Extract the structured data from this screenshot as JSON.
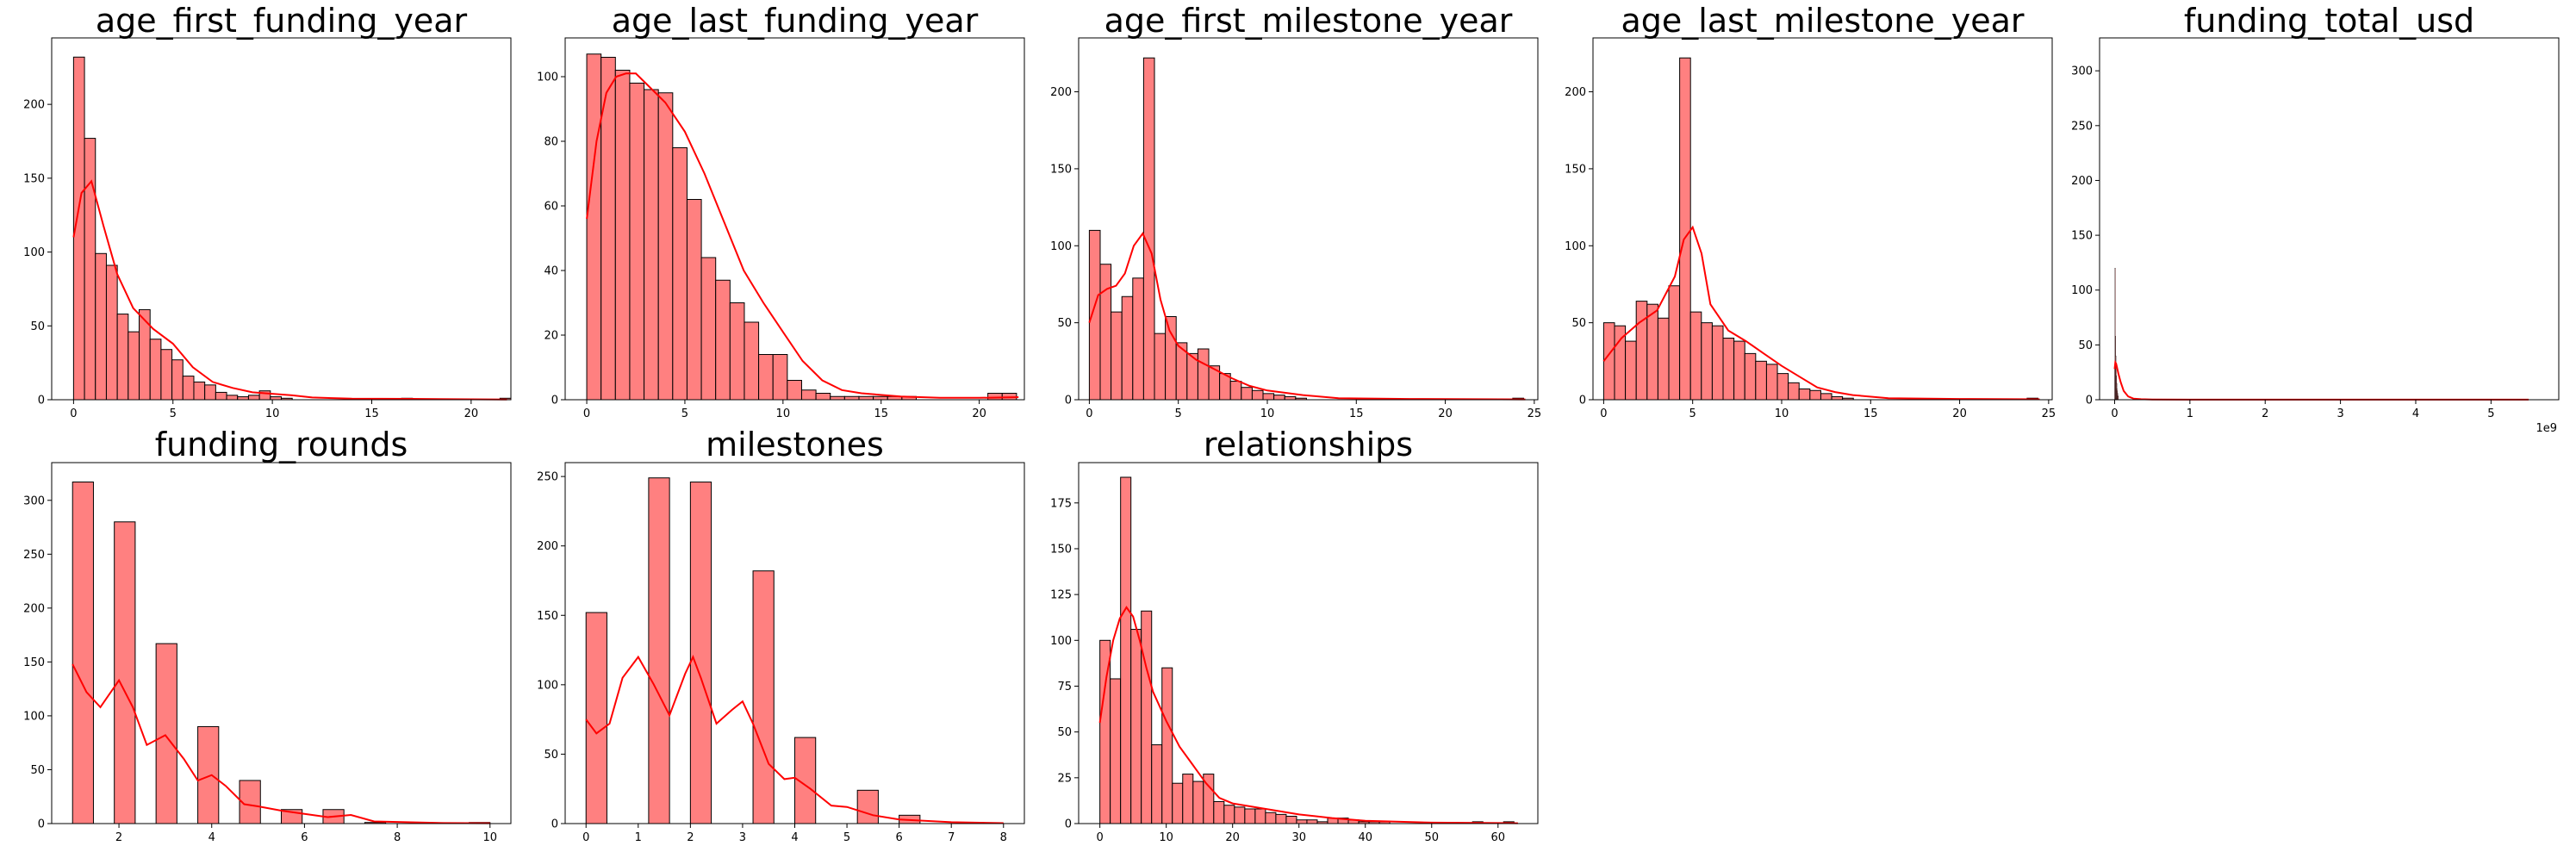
{
  "style": {
    "bar_fill": "#ff8080",
    "bar_edge": "#000000",
    "kde_color": "#ff0000",
    "axis_color": "#000000"
  },
  "chart_data": [
    {
      "type": "histogram",
      "title": "age_first_funding_year",
      "xlim": [
        -1.1,
        22.0
      ],
      "ylim": [
        0,
        245
      ],
      "xticks": [
        0,
        5,
        10,
        15,
        20
      ],
      "xtick_labels": [
        "0",
        "5",
        "10",
        "15",
        "20"
      ],
      "yticks": [
        0,
        50,
        100,
        150,
        200
      ],
      "ytick_labels": [
        "0",
        "50",
        "100",
        "150",
        "200"
      ],
      "bin_start": 0,
      "bin_width": 0.55,
      "counts": [
        232,
        177,
        99,
        91,
        58,
        46,
        61,
        41,
        34,
        27,
        16,
        12,
        10,
        5,
        3,
        2,
        3,
        6,
        2,
        1,
        0,
        0,
        0,
        0,
        0,
        0,
        0,
        0,
        0,
        0,
        1,
        0,
        0,
        0,
        0,
        0,
        0,
        0,
        0,
        1
      ],
      "kde_x": [
        0,
        0.4,
        0.9,
        1.5,
        2.2,
        3,
        4,
        5,
        6,
        7,
        8,
        9,
        10,
        11,
        12,
        14,
        17,
        20,
        21.8
      ],
      "kde_y": [
        110,
        140,
        148,
        118,
        85,
        62,
        48,
        38,
        22,
        12,
        8,
        5,
        4,
        3,
        1.5,
        0.7,
        0.6,
        0.3,
        0.2
      ]
    },
    {
      "type": "histogram",
      "title": "age_last_funding_year",
      "xlim": [
        -1.1,
        22.3
      ],
      "ylim": [
        0,
        112
      ],
      "xticks": [
        0,
        5,
        10,
        15,
        20
      ],
      "xtick_labels": [
        "0",
        "5",
        "10",
        "15",
        "20"
      ],
      "yticks": [
        0,
        20,
        40,
        60,
        80,
        100
      ],
      "ytick_labels": [
        "0",
        "20",
        "40",
        "60",
        "80",
        "100"
      ],
      "bin_start": 0,
      "bin_width": 0.73,
      "counts": [
        107,
        106,
        102,
        98,
        96,
        95,
        78,
        62,
        44,
        37,
        30,
        24,
        14,
        14,
        6,
        3,
        2,
        1,
        1,
        1,
        1,
        1,
        1,
        0,
        0,
        0,
        0,
        0,
        2,
        2
      ],
      "kde_x": [
        0,
        0.5,
        1,
        1.5,
        2,
        2.5,
        3,
        4,
        5,
        6,
        7,
        8,
        9,
        10,
        11,
        12,
        13,
        14,
        16,
        18,
        20,
        22
      ],
      "kde_y": [
        56,
        80,
        95,
        100,
        101,
        101,
        98,
        92,
        83,
        70,
        55,
        40,
        30,
        21,
        12,
        6,
        3,
        2,
        1,
        0.6,
        0.6,
        0.8
      ]
    },
    {
      "type": "histogram",
      "title": "age_first_milestone_year",
      "xlim": [
        -0.6,
        25.2
      ],
      "ylim": [
        0,
        235
      ],
      "xticks": [
        0,
        5,
        10,
        15,
        20,
        25
      ],
      "xtick_labels": [
        "0",
        "5",
        "10",
        "15",
        "20",
        "25"
      ],
      "yticks": [
        0,
        50,
        100,
        150,
        200
      ],
      "ytick_labels": [
        "0",
        "50",
        "100",
        "150",
        "200"
      ],
      "bin_start": 0,
      "bin_width": 0.61,
      "counts": [
        110,
        88,
        57,
        67,
        79,
        222,
        43,
        54,
        37,
        30,
        33,
        22,
        17,
        12,
        8,
        6,
        4,
        3,
        2,
        1,
        0,
        0,
        0,
        0,
        0,
        0,
        0,
        0,
        0,
        0,
        0,
        0,
        0,
        0,
        0,
        0,
        0,
        0,
        0,
        1
      ],
      "kde_x": [
        0,
        0.5,
        1,
        1.5,
        2,
        2.5,
        3,
        3.5,
        4,
        4.5,
        5,
        6,
        7,
        8,
        9,
        10,
        12,
        14,
        18,
        24.5
      ],
      "kde_y": [
        50,
        68,
        72,
        74,
        82,
        100,
        108,
        95,
        65,
        45,
        35,
        26,
        20,
        14,
        9,
        6,
        3,
        1,
        0.5,
        0.2
      ]
    },
    {
      "type": "histogram",
      "title": "age_last_milestone_year",
      "xlim": [
        -0.6,
        25.2
      ],
      "ylim": [
        0,
        235
      ],
      "xticks": [
        0,
        5,
        10,
        15,
        20,
        25
      ],
      "xtick_labels": [
        "0",
        "5",
        "10",
        "15",
        "20",
        "25"
      ],
      "yticks": [
        0,
        50,
        100,
        150,
        200
      ],
      "ytick_labels": [
        "0",
        "50",
        "100",
        "150",
        "200"
      ],
      "bin_start": 0,
      "bin_width": 0.61,
      "counts": [
        50,
        48,
        38,
        64,
        62,
        53,
        74,
        222,
        57,
        50,
        48,
        40,
        38,
        30,
        25,
        23,
        17,
        11,
        7,
        6,
        4,
        2,
        1,
        0,
        0,
        0,
        0,
        0,
        0,
        0,
        0,
        0,
        0,
        0,
        0,
        0,
        0,
        0,
        0,
        1
      ],
      "kde_x": [
        0,
        1,
        2,
        3,
        4,
        4.5,
        5,
        5.5,
        6,
        7,
        8,
        9,
        10,
        11,
        12,
        13,
        14,
        16,
        20,
        24.5
      ],
      "kde_y": [
        25,
        40,
        50,
        58,
        80,
        104,
        112,
        95,
        62,
        45,
        38,
        30,
        22,
        15,
        8,
        5,
        3,
        1,
        0.5,
        0.3
      ]
    },
    {
      "type": "histogram",
      "title": "funding_total_usd",
      "xlim": [
        -0.2,
        5.9
      ],
      "ylim": [
        0,
        330
      ],
      "xticks": [
        0,
        1,
        2,
        3,
        4,
        5
      ],
      "xtick_labels": [
        "0",
        "1",
        "2",
        "3",
        "4",
        "5"
      ],
      "yticks": [
        0,
        50,
        100,
        150,
        200,
        250,
        300
      ],
      "ytick_labels": [
        "0",
        "50",
        "100",
        "150",
        "200",
        "250",
        "300"
      ],
      "offset_text": "1e9",
      "bin_start": 0,
      "bin_width": 0.004,
      "counts": [
        30,
        120,
        58,
        40,
        30,
        22,
        15,
        10,
        8,
        6,
        4,
        3
      ],
      "kde_x": [
        0,
        0.01,
        0.02,
        0.03,
        0.05,
        0.08,
        0.12,
        0.18,
        0.25,
        0.35,
        0.5,
        1,
        3,
        5.5
      ],
      "kde_y": [
        28,
        34,
        33,
        30,
        24,
        16,
        8,
        3,
        1,
        0.5,
        0.2,
        0.1,
        0.05,
        0.05
      ]
    },
    {
      "type": "histogram",
      "title": "funding_rounds",
      "xlim": [
        0.55,
        10.45
      ],
      "ylim": [
        0,
        335
      ],
      "xticks": [
        2,
        4,
        6,
        8,
        10
      ],
      "xtick_labels": [
        "2",
        "4",
        "6",
        "8",
        "10"
      ],
      "yticks": [
        0,
        50,
        100,
        150,
        200,
        250,
        300
      ],
      "ytick_labels": [
        "0",
        "50",
        "100",
        "150",
        "200",
        "250",
        "300"
      ],
      "bin_start": 1,
      "bin_width": 0.45,
      "counts": [
        317,
        0,
        280,
        0,
        167,
        0,
        90,
        0,
        40,
        0,
        13,
        0,
        13,
        0,
        1,
        0,
        0,
        0,
        0,
        1
      ],
      "kde_x": [
        1,
        1.3,
        1.6,
        2,
        2.3,
        2.6,
        3,
        3.4,
        3.7,
        4,
        4.3,
        4.7,
        5,
        5.5,
        6,
        6.5,
        7,
        7.5,
        8,
        9,
        10
      ],
      "kde_y": [
        148,
        122,
        108,
        133,
        108,
        73,
        82,
        60,
        40,
        45,
        35,
        18,
        16,
        12,
        9,
        6,
        8,
        2,
        1.5,
        0.5,
        0.3
      ]
    },
    {
      "type": "histogram",
      "title": "milestones",
      "xlim": [
        -0.4,
        8.4
      ],
      "ylim": [
        0,
        260
      ],
      "xticks": [
        0,
        1,
        2,
        3,
        4,
        5,
        6,
        7,
        8
      ],
      "xtick_labels": [
        "0",
        "1",
        "2",
        "3",
        "4",
        "5",
        "6",
        "7",
        "8"
      ],
      "yticks": [
        0,
        50,
        100,
        150,
        200,
        250
      ],
      "ytick_labels": [
        "0",
        "50",
        "100",
        "150",
        "200",
        "250"
      ],
      "bin_start": 0,
      "bin_width": 0.4,
      "counts": [
        152,
        0,
        0,
        249,
        0,
        246,
        0,
        0,
        182,
        0,
        62,
        0,
        0,
        24,
        0,
        6,
        0,
        0,
        0,
        0
      ],
      "kde_x": [
        0,
        0.2,
        0.45,
        0.7,
        1,
        1.3,
        1.6,
        1.9,
        2.05,
        2.2,
        2.5,
        2.8,
        3,
        3.2,
        3.5,
        3.8,
        4,
        4.3,
        4.7,
        5,
        5.5,
        6,
        7,
        8
      ],
      "kde_y": [
        75,
        65,
        72,
        105,
        120,
        100,
        78,
        108,
        120,
        105,
        72,
        82,
        88,
        72,
        43,
        32,
        33,
        25,
        13,
        12,
        6,
        3,
        1,
        0.3
      ]
    },
    {
      "type": "histogram",
      "title": "relationships",
      "xlim": [
        -3.2,
        66.0
      ],
      "ylim": [
        0,
        197
      ],
      "xticks": [
        0,
        10,
        20,
        30,
        40,
        50,
        60
      ],
      "xtick_labels": [
        "0",
        "10",
        "20",
        "30",
        "40",
        "50",
        "60"
      ],
      "yticks": [
        0,
        25,
        50,
        75,
        100,
        125,
        150,
        175
      ],
      "ytick_labels": [
        "0",
        "25",
        "50",
        "75",
        "100",
        "125",
        "150",
        "175"
      ],
      "bin_start": 0,
      "bin_width": 1.56,
      "counts": [
        100,
        79,
        189,
        106,
        116,
        43,
        85,
        22,
        27,
        23,
        27,
        12,
        10,
        9,
        8,
        8,
        6,
        5,
        4,
        2,
        2,
        1,
        3,
        3,
        2,
        1,
        1,
        1,
        0,
        0,
        0,
        0,
        0,
        0,
        0,
        0,
        1,
        0,
        0,
        1
      ],
      "kde_x": [
        0,
        1,
        2,
        3,
        4,
        5,
        6,
        7,
        8,
        10,
        12,
        14,
        16,
        18,
        20,
        25,
        30,
        35,
        40,
        50,
        60,
        63
      ],
      "kde_y": [
        55,
        80,
        100,
        112,
        118,
        113,
        100,
        85,
        72,
        56,
        42,
        32,
        22,
        14,
        11,
        8,
        5,
        3,
        1.5,
        0.5,
        0.3,
        0.2
      ]
    }
  ]
}
